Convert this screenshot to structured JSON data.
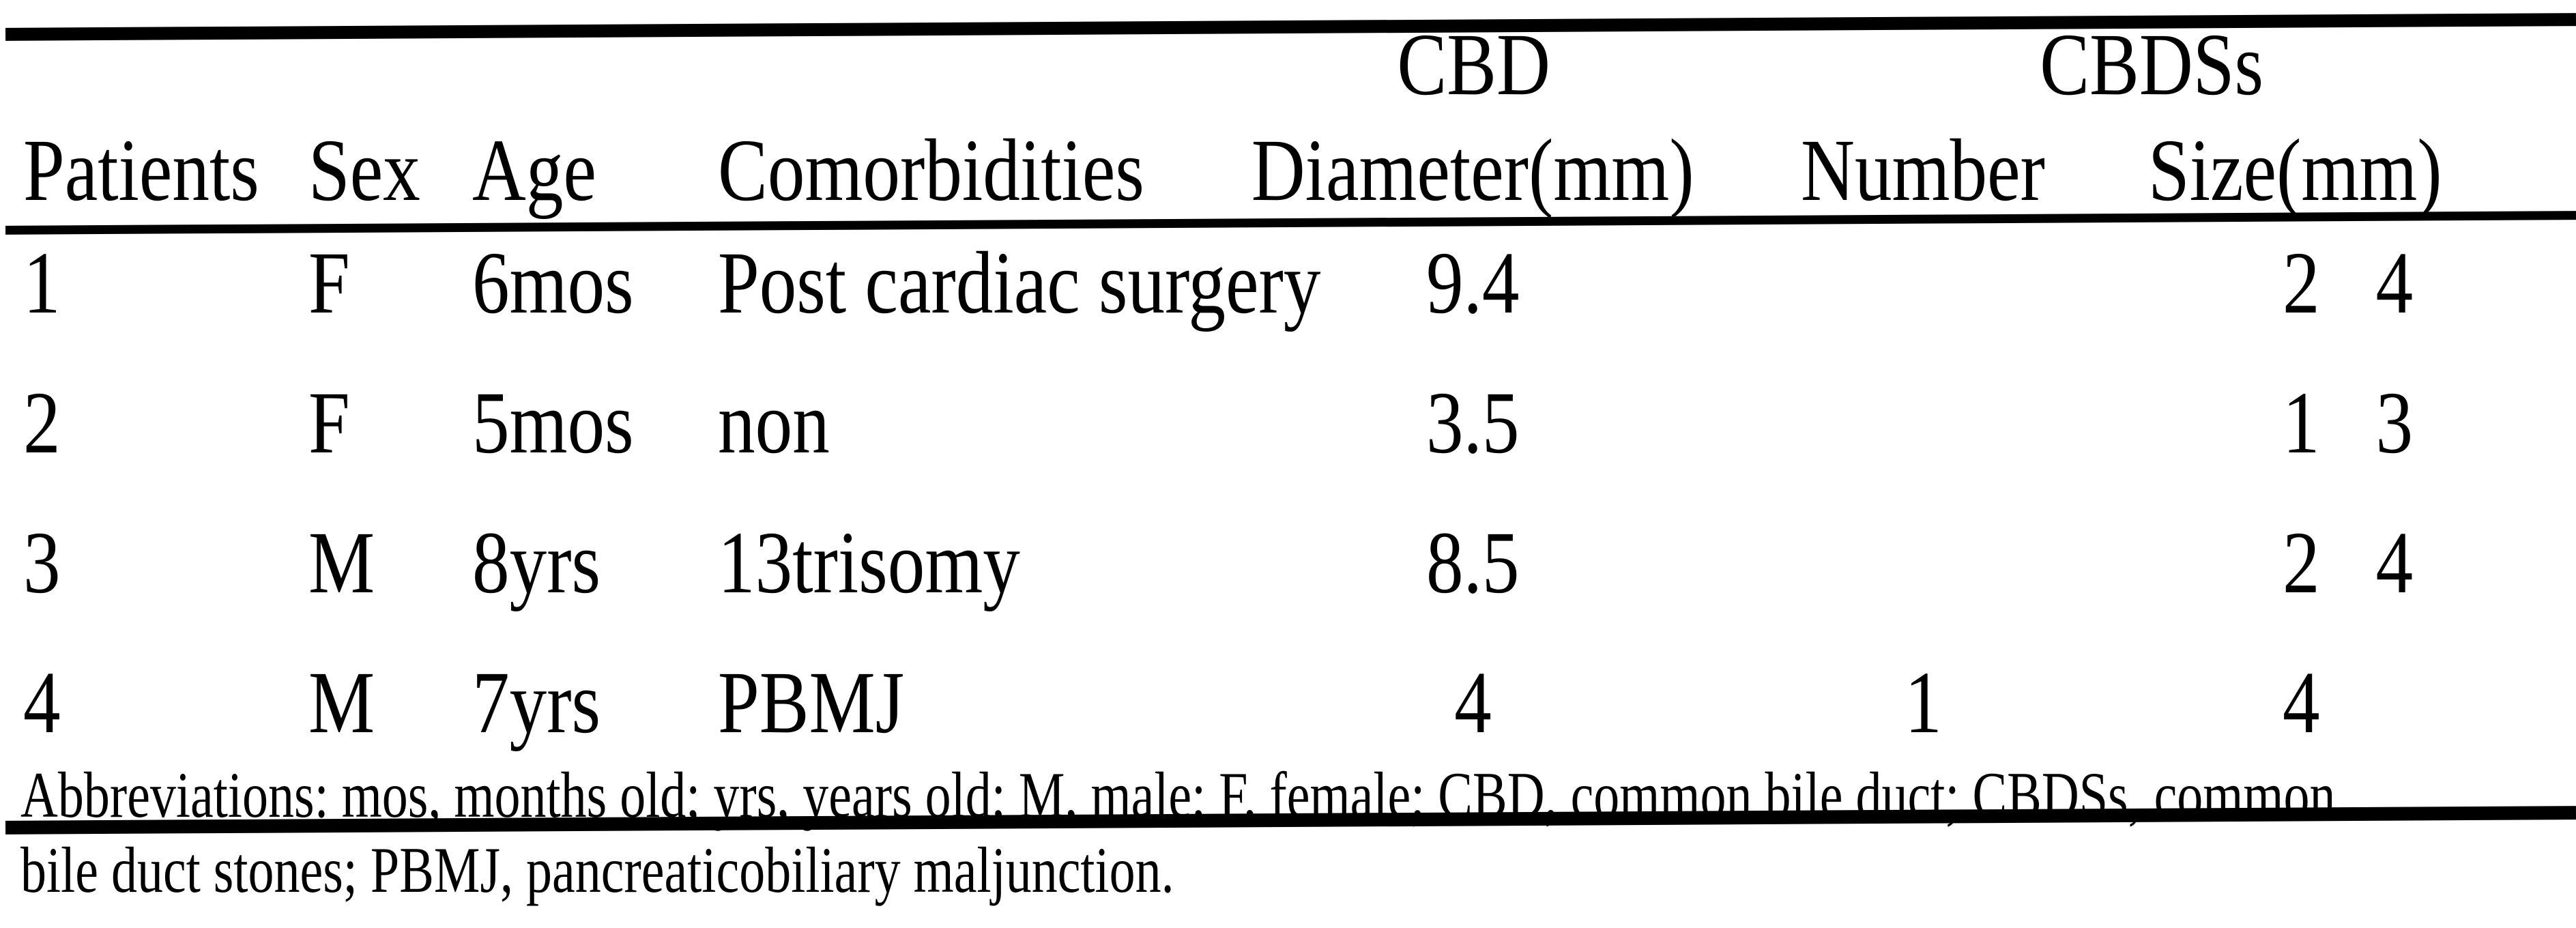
{
  "colors": {
    "background": "#ffffff",
    "text": "#000000",
    "rule": "#000000"
  },
  "table": {
    "column_groups": [
      {
        "label": "CBD"
      },
      {
        "label": "CBDSs"
      }
    ],
    "columns": {
      "patients": "Patients",
      "sex": "Sex",
      "age": "Age",
      "comorbidities": "Comorbidities",
      "cbd_diameter": "Diameter(mm)",
      "cbds_number": "Number",
      "cbds_size": "Size(mm)"
    },
    "rows": [
      {
        "patient": "1",
        "sex": "F",
        "age": "6mos",
        "comorbidities": "Post cardiac surgery",
        "cbd_diameter_mm": "9.4",
        "cbds_number": "",
        "cbds_size_mm": "2   4"
      },
      {
        "patient": "2",
        "sex": "F",
        "age": "5mos",
        "comorbidities": "non",
        "cbd_diameter_mm": "3.5",
        "cbds_number": "",
        "cbds_size_mm": "1   3"
      },
      {
        "patient": "3",
        "sex": "M",
        "age": "8yrs",
        "comorbidities": "13trisomy",
        "cbd_diameter_mm": "8.5",
        "cbds_number": "",
        "cbds_size_mm": "2   4"
      },
      {
        "patient": "4",
        "sex": "M",
        "age": "7yrs",
        "comorbidities": "PBMJ",
        "cbd_diameter_mm": "4",
        "cbds_number": "1",
        "cbds_size_mm": "4"
      }
    ],
    "footnote": {
      "line1": "Abbreviations: mos, months old; yrs, years old; M, male; F, female; CBD, common bile duct; CBDSs, common",
      "line2": "bile duct stones; PBMJ, pancreaticobiliary maljunction."
    }
  }
}
